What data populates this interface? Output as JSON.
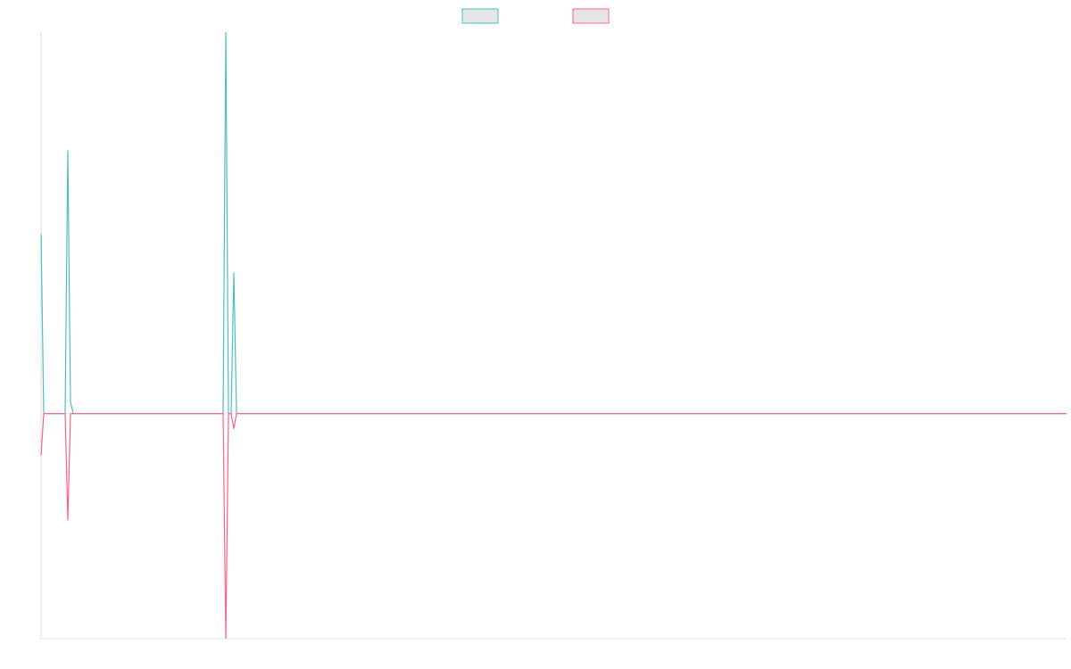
{
  "chart_data": {
    "type": "line",
    "x": [
      0,
      1,
      9,
      10,
      11,
      12,
      68,
      69,
      70,
      71,
      72,
      73,
      383
    ],
    "xlim": [
      0,
      383
    ],
    "ylim": [
      -59,
      100
    ],
    "series": [
      {
        "color": "#4bc0c0",
        "values": [
          47,
          0,
          0,
          69,
          3,
          0,
          0,
          100,
          0,
          0,
          37,
          0,
          0
        ]
      },
      {
        "color": "#ff6384",
        "values": [
          -11,
          0,
          0,
          -28,
          0,
          0,
          0,
          -59,
          0,
          0,
          -4,
          0,
          0
        ]
      }
    ],
    "legend": "top"
  }
}
